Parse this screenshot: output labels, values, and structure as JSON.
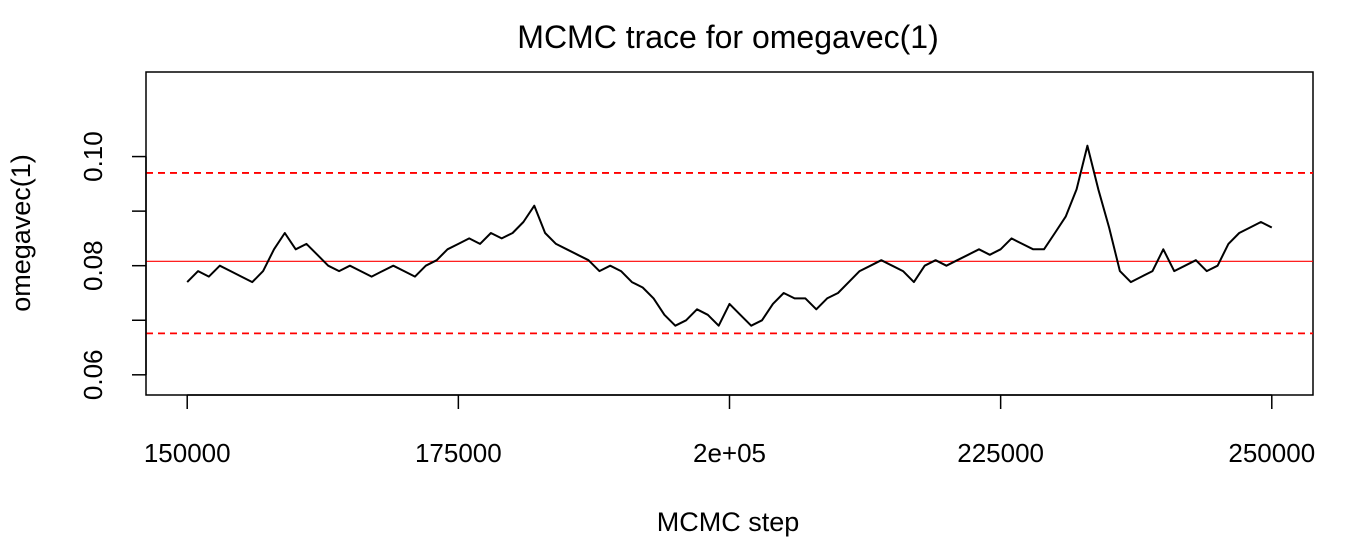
{
  "chart_data": {
    "type": "line",
    "title": "MCMC trace for omegavec(1)",
    "xlabel": "MCMC step",
    "ylabel": "omegavec(1)",
    "xlim": [
      146200,
      253800
    ],
    "ylim": [
      0.0563,
      0.1155
    ],
    "x_ticks": [
      150000,
      175000,
      200000,
      225000,
      250000
    ],
    "x_tick_labels": [
      "150000",
      "175000",
      "2e+05",
      "225000",
      "250000"
    ],
    "y_ticks": [
      0.06,
      0.08,
      0.1
    ],
    "y_tick_labels": [
      "0.06",
      "0.08",
      "0.10"
    ],
    "grid": false,
    "legend": "none",
    "reference_lines": [
      {
        "value": 0.0808,
        "style": "solid",
        "color": "#ff0000"
      },
      {
        "value": 0.097,
        "style": "dashed",
        "color": "#ff0000"
      },
      {
        "value": 0.0676,
        "style": "dashed",
        "color": "#ff0000"
      }
    ],
    "series": [
      {
        "color": "#000000",
        "x": [
          150000,
          151000,
          152000,
          153000,
          154000,
          155000,
          156000,
          157000,
          158000,
          159000,
          160000,
          161000,
          162000,
          163000,
          164000,
          165000,
          166000,
          167000,
          168000,
          169000,
          170000,
          171000,
          172000,
          173000,
          174000,
          175000,
          176000,
          177000,
          178000,
          179000,
          180000,
          181000,
          182000,
          183000,
          184000,
          185000,
          186000,
          187000,
          188000,
          189000,
          190000,
          191000,
          192000,
          193000,
          194000,
          195000,
          196000,
          197000,
          198000,
          199000,
          200000,
          201000,
          202000,
          203000,
          204000,
          205000,
          206000,
          207000,
          208000,
          209000,
          210000,
          211000,
          212000,
          213000,
          214000,
          215000,
          216000,
          217000,
          218000,
          219000,
          220000,
          221000,
          222000,
          223000,
          224000,
          225000,
          226000,
          227000,
          228000,
          229000,
          230000,
          231000,
          232000,
          233000,
          234000,
          235000,
          236000,
          237000,
          238000,
          239000,
          240000,
          241000,
          242000,
          243000,
          244000,
          245000,
          246000,
          247000,
          248000,
          249000,
          250000
        ],
        "y": [
          0.077,
          0.079,
          0.078,
          0.08,
          0.079,
          0.078,
          0.077,
          0.079,
          0.083,
          0.086,
          0.083,
          0.084,
          0.082,
          0.08,
          0.079,
          0.08,
          0.079,
          0.078,
          0.079,
          0.08,
          0.079,
          0.078,
          0.08,
          0.081,
          0.083,
          0.084,
          0.085,
          0.084,
          0.086,
          0.085,
          0.086,
          0.088,
          0.091,
          0.086,
          0.084,
          0.083,
          0.082,
          0.081,
          0.079,
          0.08,
          0.079,
          0.077,
          0.076,
          0.074,
          0.071,
          0.069,
          0.07,
          0.072,
          0.071,
          0.069,
          0.073,
          0.071,
          0.069,
          0.07,
          0.073,
          0.075,
          0.074,
          0.074,
          0.072,
          0.074,
          0.075,
          0.077,
          0.079,
          0.08,
          0.081,
          0.08,
          0.079,
          0.077,
          0.08,
          0.081,
          0.08,
          0.081,
          0.082,
          0.083,
          0.082,
          0.083,
          0.085,
          0.084,
          0.083,
          0.083,
          0.086,
          0.089,
          0.094,
          0.102,
          0.094,
          0.087,
          0.079,
          0.077,
          0.078,
          0.079,
          0.083,
          0.079,
          0.08,
          0.081,
          0.079,
          0.08,
          0.084,
          0.086,
          0.087,
          0.088,
          0.087
        ]
      }
    ]
  }
}
